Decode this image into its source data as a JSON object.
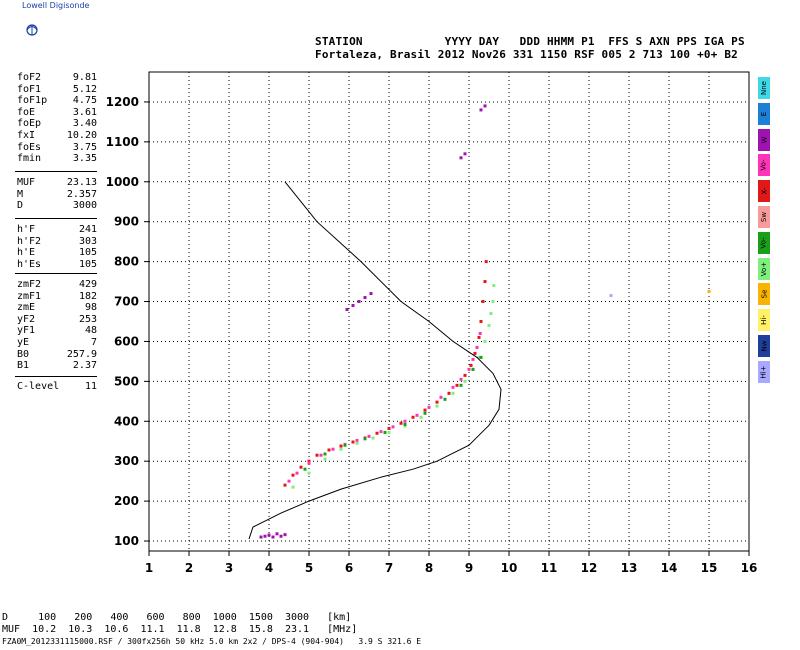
{
  "logo_text": "Lowell Digisonde",
  "header": {
    "line1": "STATION            YYYY DAY   DDD HHMM P1  FFS S AXN PPS IGA PS",
    "line2": "Fortaleza, Brasil 2012 Nov26 331 1150 RSF 005 2 713 100 +0+ B2"
  },
  "params": {
    "group1": [
      {
        "k": "foF2",
        "v": "9.81"
      },
      {
        "k": "foF1",
        "v": "5.12"
      },
      {
        "k": "foF1p",
        "v": "4.75"
      },
      {
        "k": "foE",
        "v": "3.61"
      },
      {
        "k": "foEp",
        "v": "3.40"
      },
      {
        "k": "fxI",
        "v": "10.20"
      },
      {
        "k": "foEs",
        "v": "3.75"
      },
      {
        "k": "fmin",
        "v": "3.35"
      }
    ],
    "group2": [
      {
        "k": "MUF",
        "v": "23.13"
      },
      {
        "k": "M",
        "v": "2.357"
      },
      {
        "k": "D",
        "v": "3000"
      }
    ],
    "group3": [
      {
        "k": "h'F",
        "v": "241"
      },
      {
        "k": "h'F2",
        "v": "303"
      },
      {
        "k": "h'E",
        "v": "105"
      },
      {
        "k": "h'Es",
        "v": "105"
      }
    ],
    "group4": [
      {
        "k": "zmF2",
        "v": "429"
      },
      {
        "k": "zmF1",
        "v": "182"
      },
      {
        "k": "zmE",
        "v": "98"
      },
      {
        "k": "yF2",
        "v": "253"
      },
      {
        "k": "yF1",
        "v": "48"
      },
      {
        "k": "yE",
        "v": "7"
      },
      {
        "k": "B0",
        "v": "257.9"
      },
      {
        "k": "B1",
        "v": "2.37"
      }
    ],
    "group5": [
      {
        "k": "C-level",
        "v": "11"
      }
    ]
  },
  "legend": [
    {
      "label": "Nne",
      "color": "#3fd8e8"
    },
    {
      "label": "E",
      "color": "#1e7fd6"
    },
    {
      "label": "W",
      "color": "#a012b0"
    },
    {
      "label": "Vo-",
      "color": "#ff33b8"
    },
    {
      "label": "X-",
      "color": "#e01818"
    },
    {
      "label": "Sw",
      "color": "#f79a9a"
    },
    {
      "label": "Vo-",
      "color": "#19a019"
    },
    {
      "label": "Vo+",
      "color": "#7df07d"
    },
    {
      "label": "Se",
      "color": "#f8b400"
    },
    {
      "label": "Hi-",
      "color": "#fff066"
    },
    {
      "label": "Nw",
      "color": "#1f3f9a"
    },
    {
      "label": "Hi+",
      "color": "#a8a8ff"
    }
  ],
  "chart_data": {
    "type": "scatter",
    "xlabel": "",
    "ylabel": "",
    "xlim": [
      1,
      16
    ],
    "ylim": [
      100,
      1250
    ],
    "x_ticks": [
      1,
      2,
      3,
      4,
      5,
      6,
      7,
      8,
      9,
      10,
      11,
      12,
      13,
      14,
      15,
      16
    ],
    "y_ticks": [
      100,
      200,
      300,
      400,
      500,
      600,
      700,
      800,
      900,
      1000,
      1100,
      1200
    ],
    "grid": true,
    "profile": {
      "x": [
        4.4,
        5.2,
        6.3,
        7.3,
        8.0,
        8.6,
        9.2,
        9.6,
        9.8,
        9.75,
        9.5,
        9.2,
        9.0,
        8.6,
        8.2,
        7.6,
        6.8,
        5.8,
        5.0,
        4.3,
        3.9,
        3.6,
        3.5
      ],
      "y": [
        1000,
        900,
        800,
        700,
        650,
        600,
        560,
        520,
        480,
        430,
        390,
        360,
        340,
        320,
        300,
        280,
        260,
        230,
        200,
        170,
        150,
        135,
        105
      ]
    },
    "traces": [
      {
        "name": "X-",
        "color": "#e01818",
        "x": [
          4.4,
          4.6,
          4.8,
          5.0,
          5.2,
          5.5,
          5.8,
          6.1,
          6.4,
          6.7,
          7.0,
          7.3,
          7.6,
          7.9,
          8.2,
          8.5,
          8.7,
          8.9,
          9.05,
          9.15,
          9.25,
          9.3,
          9.35,
          9.4,
          9.43
        ],
        "y": [
          240,
          265,
          285,
          300,
          315,
          328,
          338,
          348,
          358,
          370,
          382,
          395,
          410,
          428,
          448,
          470,
          490,
          515,
          540,
          570,
          610,
          650,
          700,
          750,
          800
        ]
      },
      {
        "name": "Vo-",
        "color": "#ff33b8",
        "x": [
          4.5,
          4.7,
          5.0,
          5.3,
          5.6,
          5.9,
          6.2,
          6.5,
          6.8,
          7.1,
          7.4,
          7.7,
          8.0,
          8.3,
          8.6,
          8.8,
          9.0,
          9.1,
          9.2,
          9.28
        ],
        "y": [
          250,
          270,
          295,
          315,
          330,
          342,
          352,
          362,
          374,
          386,
          400,
          415,
          435,
          460,
          485,
          505,
          530,
          555,
          585,
          620
        ]
      },
      {
        "name": "Vo+",
        "color": "#7df07d",
        "x": [
          4.6,
          5.0,
          5.4,
          5.8,
          6.2,
          6.6,
          7.0,
          7.4,
          7.8,
          8.2,
          8.6,
          8.9,
          9.1,
          9.25,
          9.4,
          9.5,
          9.55,
          9.6,
          9.62
        ],
        "y": [
          235,
          270,
          305,
          330,
          345,
          358,
          372,
          388,
          410,
          438,
          470,
          500,
          530,
          560,
          600,
          640,
          670,
          700,
          740
        ]
      },
      {
        "name": "Vo-",
        "color": "#19a019",
        "x": [
          4.9,
          5.4,
          5.9,
          6.4,
          6.9,
          7.4,
          7.9,
          8.4,
          8.8,
          9.1,
          9.3
        ],
        "y": [
          280,
          318,
          340,
          356,
          372,
          392,
          420,
          455,
          490,
          530,
          560
        ]
      },
      {
        "name": "W",
        "color": "#a012b0",
        "x": [
          3.8,
          3.9,
          4.0,
          4.1,
          4.2,
          4.3,
          4.4,
          5.95,
          6.1,
          6.25,
          6.4,
          6.55,
          8.8,
          8.9,
          9.3,
          9.4
        ],
        "y": [
          110,
          112,
          115,
          110,
          118,
          112,
          116,
          680,
          690,
          700,
          710,
          720,
          1060,
          1070,
          1180,
          1190
        ]
      },
      {
        "name": "Hi+",
        "color": "#a8a8ff",
        "x": [
          12.55
        ],
        "y": [
          715
        ]
      },
      {
        "name": "Se",
        "color": "#f8b400",
        "x": [
          15.0
        ],
        "y": [
          725
        ]
      }
    ]
  },
  "footer": {
    "d_row": "D     100   200   400   600   800  1000  1500  3000   [km]",
    "muf_row": "MUF  10.2  10.3  10.6  11.1  11.8  12.8  15.8  23.1   [MHz]",
    "file_row": "FZA0M_2012331115000.RSF / 300fx256h 50 kHz 5.0 km 2x2 / DPS-4 (904-904)   3.9 S 321.6 E"
  }
}
